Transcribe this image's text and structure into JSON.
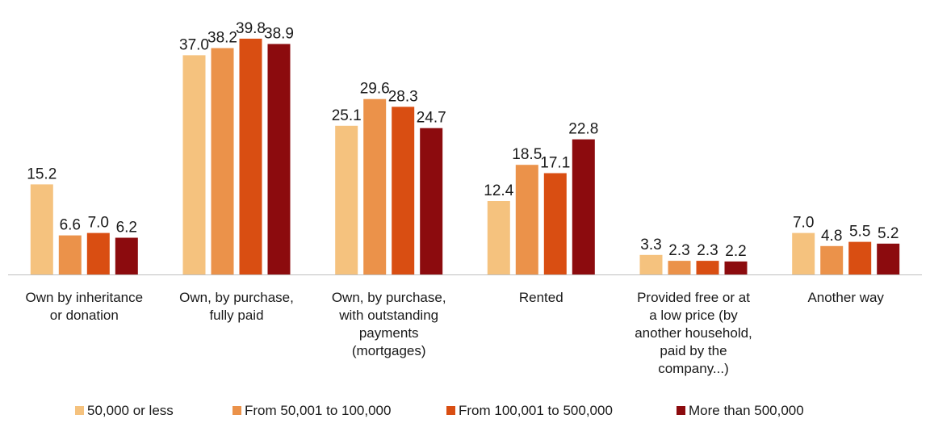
{
  "chart_data": {
    "type": "bar",
    "title": "",
    "xlabel": "",
    "ylabel": "",
    "ylim": [
      0,
      40
    ],
    "grid": false,
    "legend_position": "bottom",
    "categories": [
      [
        "Own by inheritance",
        "or donation"
      ],
      [
        "Own, by purchase,",
        "fully paid"
      ],
      [
        "Own, by purchase,",
        "with outstanding",
        "payments",
        "(mortgages)"
      ],
      [
        "Rented"
      ],
      [
        "Provided free or at",
        "a low price (by",
        "another household,",
        "paid by the",
        "company...)"
      ],
      [
        "Another way"
      ]
    ],
    "series": [
      {
        "name": "50,000 or less",
        "color": "#F5C27E",
        "values": [
          15.2,
          37.0,
          25.1,
          12.4,
          3.3,
          7.0
        ]
      },
      {
        "name": "From 50,001 to 100,000",
        "color": "#EB924A",
        "values": [
          6.6,
          38.2,
          29.6,
          18.5,
          2.3,
          4.8
        ]
      },
      {
        "name": "From 100,001 to 500,000",
        "color": "#D94E12",
        "values": [
          7.0,
          39.8,
          28.3,
          17.1,
          2.3,
          5.5
        ]
      },
      {
        "name": "More than 500,000",
        "color": "#8C0B0E",
        "values": [
          6.2,
          38.9,
          24.7,
          22.8,
          2.2,
          5.2
        ]
      }
    ],
    "value_format": "0.0",
    "axis_color": "#BFBFBF"
  }
}
